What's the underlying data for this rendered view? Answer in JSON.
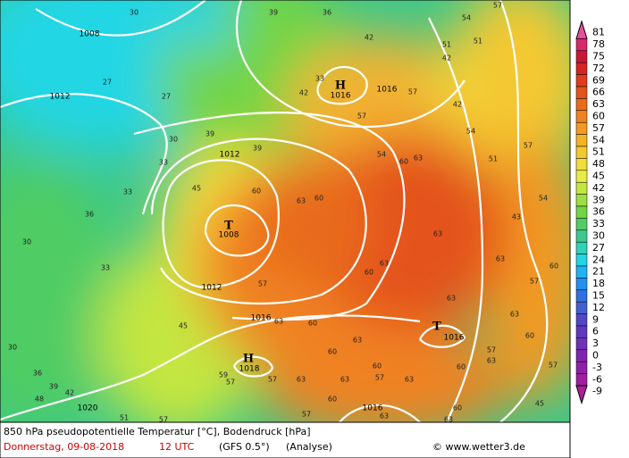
{
  "map": {
    "isobar_labels": [
      "1008",
      "1012",
      "1016",
      "1016",
      "1012",
      "1008",
      "1012",
      "1016",
      "1016",
      "1018",
      "1020",
      "1016"
    ],
    "pressure_centers": [
      "H",
      "T",
      "T",
      "H"
    ],
    "temperature_labels": [
      "30",
      "39",
      "36",
      "54",
      "57",
      "42",
      "51",
      "51",
      "42",
      "27",
      "27",
      "42",
      "33",
      "57",
      "57",
      "42",
      "39",
      "30",
      "39",
      "33",
      "54",
      "60",
      "63",
      "54",
      "51",
      "57",
      "45",
      "60",
      "63",
      "60",
      "33",
      "36",
      "30",
      "33",
      "57",
      "60",
      "63",
      "63",
      "43",
      "54",
      "60",
      "63",
      "57",
      "63",
      "63",
      "60",
      "30",
      "45",
      "63",
      "60",
      "63",
      "60",
      "63",
      "57",
      "63",
      "60",
      "60",
      "57",
      "63",
      "57",
      "45",
      "60",
      "60",
      "57",
      "63",
      "57",
      "36",
      "39",
      "48",
      "42",
      "51",
      "57",
      "59",
      "57",
      "63",
      "63"
    ]
  },
  "colorbar": {
    "labels": [
      81,
      78,
      75,
      72,
      69,
      66,
      63,
      60,
      57,
      54,
      51,
      48,
      45,
      42,
      39,
      36,
      33,
      30,
      27,
      24,
      21,
      18,
      15,
      12,
      9,
      6,
      3,
      0,
      -3,
      -6,
      -9
    ],
    "colors": [
      "#e8509a",
      "#d82a6a",
      "#c81838",
      "#d42424",
      "#e03c1c",
      "#e4521c",
      "#e86a1c",
      "#f08220",
      "#f29a22",
      "#f4b226",
      "#f4c830",
      "#f2dc3c",
      "#e6ec44",
      "#c4e640",
      "#9ede40",
      "#72d444",
      "#50cc64",
      "#3cc88a",
      "#30d2b8",
      "#22d6e4",
      "#20b2f2",
      "#2290f0",
      "#3070e0",
      "#4260d0",
      "#5048c8",
      "#6038c0",
      "#7030b8",
      "#8024b0",
      "#9020a8",
      "#a01ea0",
      "#b01e98"
    ]
  },
  "footer": {
    "title": "850 hPa pseudopotentielle Temperatur [°C], Bodendruck [hPa]",
    "date": "Donnerstag, 09-08-2018",
    "time": "12 UTC",
    "model": "(GFS 0.5°)",
    "run": "(Analyse)",
    "credit": "© www.wetter3.de"
  }
}
